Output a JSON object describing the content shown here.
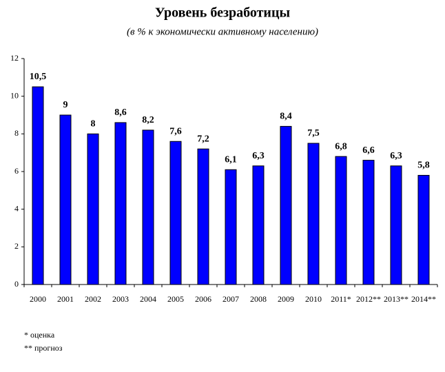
{
  "chart_data": {
    "type": "bar",
    "title": "Уровень безработицы",
    "subtitle": "(в % к экономически активному населению)",
    "categories": [
      "2000",
      "2001",
      "2002",
      "2003",
      "2004",
      "2005",
      "2006",
      "2007",
      "2008",
      "2009",
      "2010",
      "2011*",
      "2012**",
      "2013**",
      "2014**"
    ],
    "values": [
      10.5,
      9,
      8,
      8.6,
      8.2,
      7.6,
      7.2,
      6.1,
      6.3,
      8.4,
      7.5,
      6.8,
      6.6,
      6.3,
      5.8
    ],
    "value_labels": [
      "10,5",
      "9",
      "8",
      "8,6",
      "8,2",
      "7,6",
      "7,2",
      "6,1",
      "6,3",
      "8,4",
      "7,5",
      "6,8",
      "6,6",
      "6,3",
      "5,8"
    ],
    "color": "#0000ff",
    "ylim": [
      0,
      12
    ],
    "yticks": [
      0,
      2,
      4,
      6,
      8,
      10,
      12
    ],
    "notes": [
      "* оценка",
      "** прогноз"
    ]
  }
}
